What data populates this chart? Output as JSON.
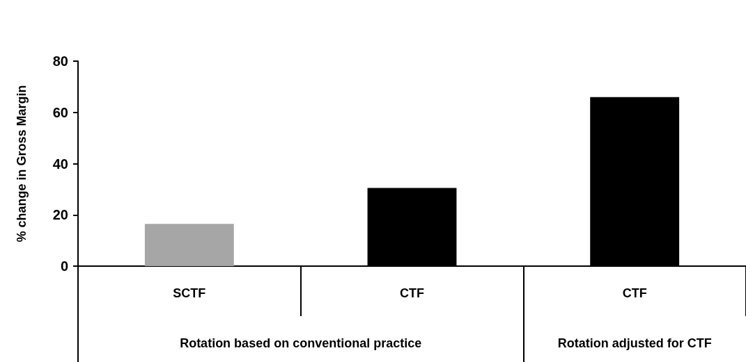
{
  "chart_data": {
    "type": "bar",
    "ylabel": "% change in Gross Margin",
    "categories": [
      "SCTF",
      "CTF",
      "CTF"
    ],
    "values": [
      16.5,
      30.5,
      66
    ],
    "colors": [
      "#a6a6a6",
      "#000000",
      "#000000"
    ],
    "ylim": [
      0,
      80
    ],
    "yticks": [
      0,
      20,
      40,
      60,
      80
    ],
    "annotations": [
      "Rotation based on conventional practice",
      "Rotation adjusted for CTF"
    ]
  }
}
